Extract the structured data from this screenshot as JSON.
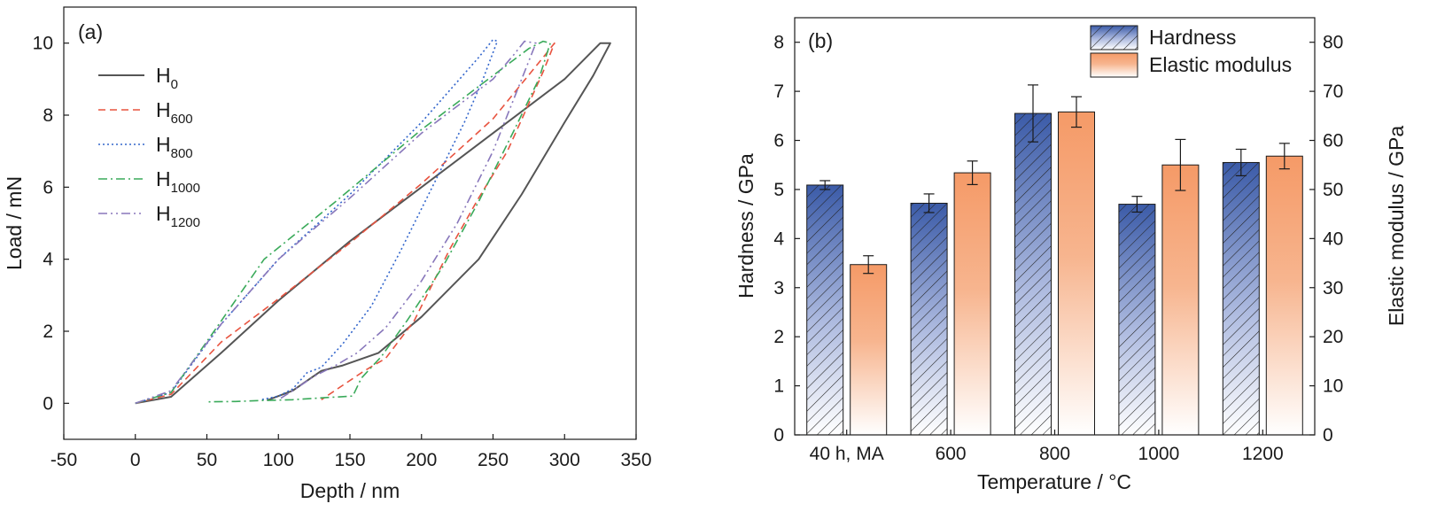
{
  "chart_data": [
    {
      "type": "line",
      "panel_label": "(a)",
      "xlabel": "Depth / nm",
      "ylabel": "Load / mN",
      "xlim": [
        -50,
        350
      ],
      "ylim": [
        -1,
        11
      ],
      "xticks": [
        -50,
        0,
        50,
        100,
        150,
        200,
        250,
        300,
        350
      ],
      "yticks": [
        0,
        2,
        4,
        6,
        8,
        10
      ],
      "legend_position": "top-left",
      "series": [
        {
          "name": "H",
          "sub": "0",
          "color": "#555555",
          "dash": "",
          "x": [
            0,
            25,
            60,
            100,
            150,
            200,
            250,
            300,
            325,
            332,
            320,
            300,
            270,
            240,
            200,
            170,
            145,
            130,
            110,
            92
          ],
          "y": [
            0,
            0.18,
            1.4,
            2.85,
            4.5,
            6.0,
            7.5,
            9.0,
            10.0,
            10.0,
            9.1,
            7.8,
            5.8,
            4.0,
            2.4,
            1.4,
            1.05,
            0.9,
            0.35,
            0.08
          ]
        },
        {
          "name": "H",
          "sub": "600",
          "color": "#e8533f",
          "dash": "8,5",
          "x": [
            0,
            25,
            60,
            100,
            150,
            200,
            250,
            285,
            293,
            285,
            260,
            240,
            220,
            195,
            175,
            160,
            145,
            130
          ],
          "y": [
            0,
            0.25,
            1.7,
            2.9,
            4.45,
            6.1,
            7.9,
            9.6,
            10.0,
            9.2,
            7.0,
            5.7,
            4.3,
            2.3,
            1.25,
            0.9,
            0.5,
            0.1
          ]
        },
        {
          "name": "H",
          "sub": "800",
          "color": "#3366cc",
          "dash": "2,3",
          "x": [
            0,
            25,
            60,
            100,
            150,
            200,
            240,
            250,
            253,
            243,
            230,
            210,
            185,
            165,
            145,
            130,
            120,
            110,
            100,
            88
          ],
          "y": [
            0,
            0.3,
            2.2,
            4.0,
            5.8,
            7.8,
            9.6,
            10.1,
            10.05,
            9.0,
            7.8,
            6.2,
            4.2,
            2.7,
            1.65,
            1.0,
            0.85,
            0.4,
            0.2,
            0.1
          ]
        },
        {
          "name": "H",
          "sub": "1000",
          "color": "#3aaa5a",
          "dash": "10,4,2,4",
          "x": [
            0,
            25,
            55,
            90,
            140,
            200,
            250,
            275,
            285,
            290,
            282,
            265,
            240,
            215,
            190,
            172,
            158,
            152,
            130,
            110,
            90,
            70,
            50
          ],
          "y": [
            0,
            0.3,
            2.0,
            4.0,
            5.6,
            7.6,
            9.1,
            9.85,
            10.05,
            10.0,
            9.0,
            7.6,
            5.6,
            3.8,
            2.3,
            1.3,
            0.7,
            0.2,
            0.15,
            0.1,
            0.08,
            0.05,
            0.04
          ]
        },
        {
          "name": "H",
          "sub": "1200",
          "color": "#8877bb",
          "dash": "10,4,2,4,2,4",
          "x": [
            0,
            25,
            60,
            100,
            150,
            200,
            250,
            265,
            272,
            280,
            268,
            250,
            225,
            200,
            175,
            155,
            140,
            125,
            110,
            100
          ],
          "y": [
            0,
            0.35,
            2.2,
            4.0,
            5.7,
            7.5,
            9.0,
            9.7,
            10.05,
            10.0,
            8.8,
            7.0,
            5.0,
            3.4,
            2.1,
            1.4,
            1.05,
            0.75,
            0.35,
            0.1
          ]
        }
      ]
    },
    {
      "type": "bar",
      "panel_label": "(b)",
      "xlabel": "Temperature / °C",
      "ylabel": "Hardness / GPa",
      "ylabel_right": "Elastic modulus / GPa",
      "categories": [
        "40 h, MA",
        "600",
        "800",
        "1000",
        "1200"
      ],
      "ylim": [
        0,
        8.5
      ],
      "ylim_right": [
        0,
        85
      ],
      "yticks": [
        0,
        1,
        2,
        3,
        4,
        5,
        6,
        7,
        8
      ],
      "yticks_right": [
        0,
        10,
        20,
        30,
        40,
        50,
        60,
        70,
        80
      ],
      "legend_position": "top-right",
      "series": [
        {
          "name": "Hardness",
          "axis": "left",
          "color": "#3b5ba8",
          "pattern": "hatched",
          "values": [
            5.09,
            4.72,
            6.55,
            4.7,
            5.55
          ],
          "errors": [
            0.09,
            0.19,
            0.58,
            0.16,
            0.27
          ]
        },
        {
          "name": "Elastic modulus",
          "axis": "right",
          "color": "#f59a67",
          "pattern": "gradient",
          "values": [
            34.7,
            53.4,
            65.8,
            55.0,
            56.8
          ],
          "errors": [
            1.8,
            2.4,
            3.1,
            5.2,
            2.6
          ]
        }
      ]
    }
  ]
}
